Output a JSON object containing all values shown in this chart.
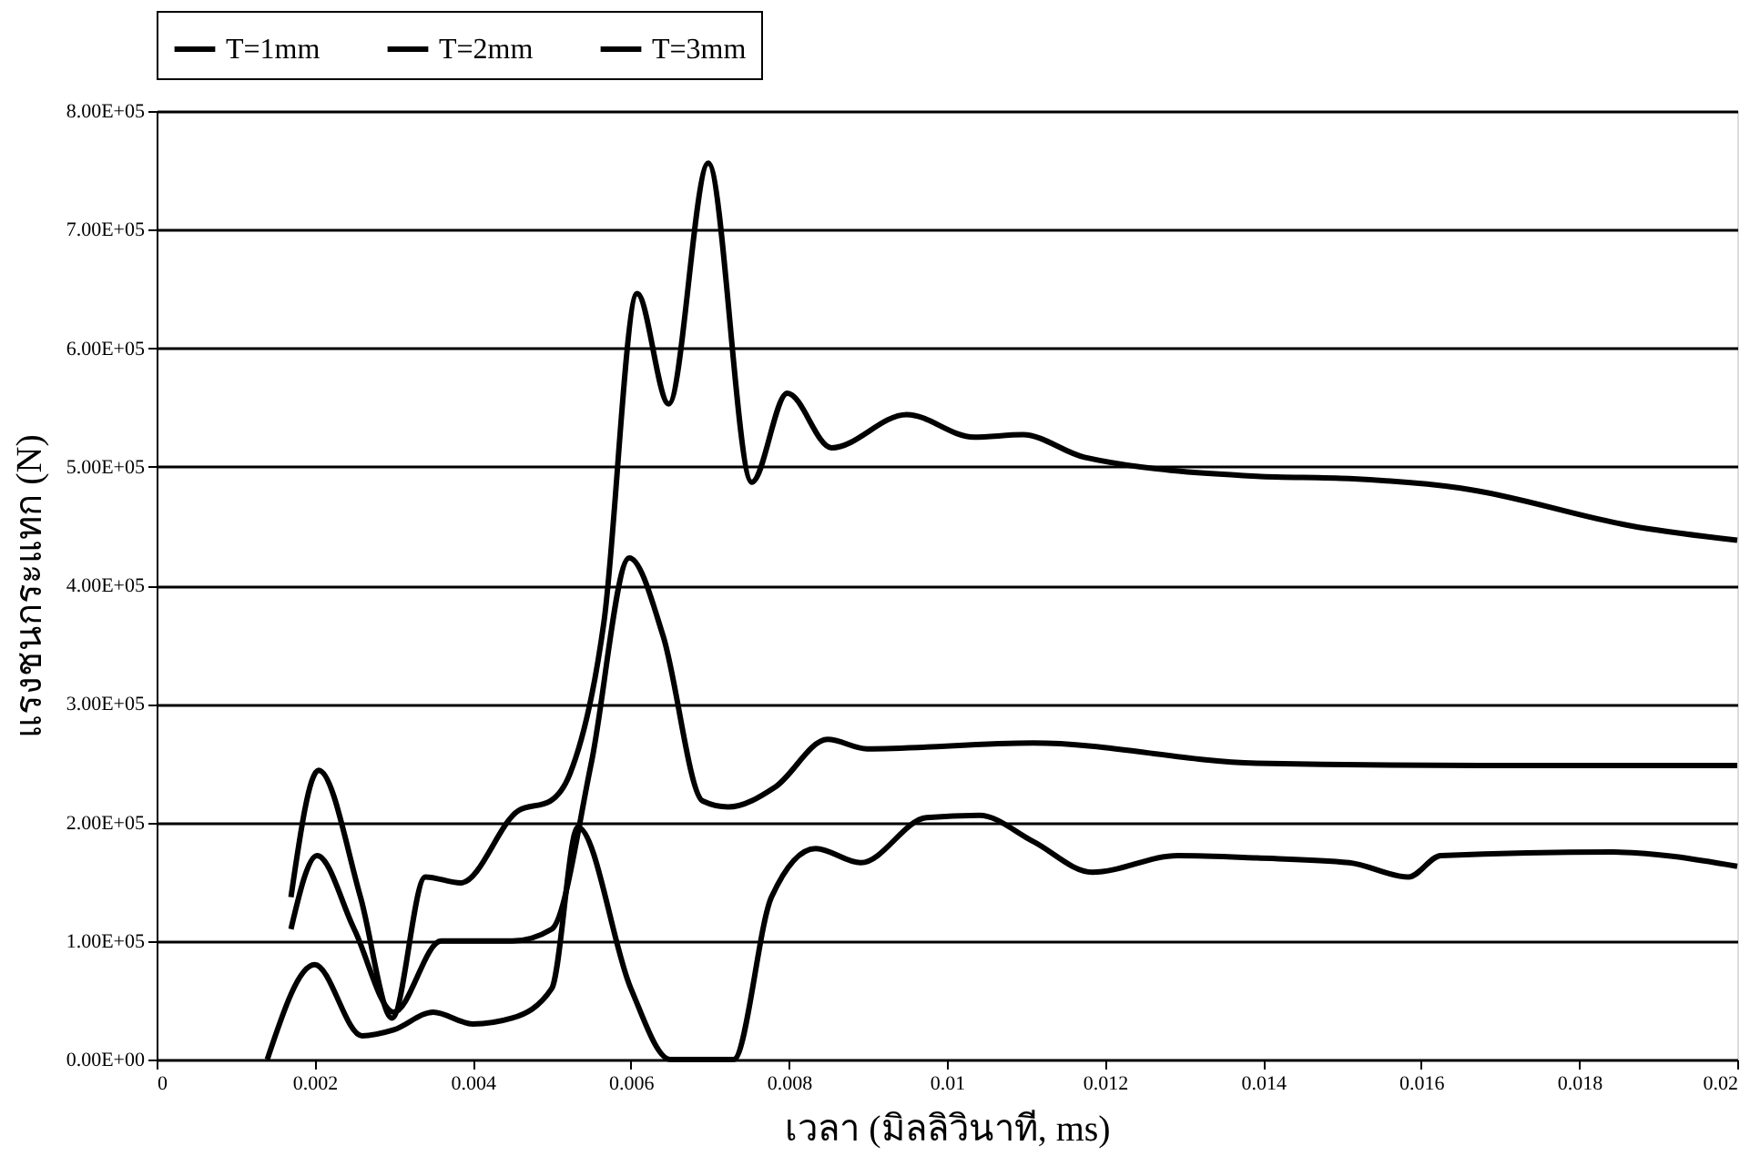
{
  "chart_data": {
    "type": "line",
    "xlabel": "เวลา (มิลลิวินาที, ms)",
    "ylabel": "แรงชนกระแทก (N)",
    "xlim": [
      0,
      0.02
    ],
    "xticks": [
      0,
      0.002,
      0.004,
      0.006,
      0.008,
      0.01,
      0.012,
      0.014,
      0.016,
      0.018,
      0.02
    ],
    "ylim": [
      0,
      800000
    ],
    "yticks": [
      {
        "value": 0,
        "label": "0.00E+00"
      },
      {
        "value": 100000,
        "label": "1.00E+05"
      },
      {
        "value": 200000,
        "label": "2.00E+05"
      },
      {
        "value": 300000,
        "label": "3.00E+05"
      },
      {
        "value": 400000,
        "label": "4.00E+05"
      },
      {
        "value": 500000,
        "label": "5.00E+05"
      },
      {
        "value": 600000,
        "label": "6.00E+05"
      },
      {
        "value": 700000,
        "label": "7.00E+05"
      },
      {
        "value": 800000,
        "label": "8.00E+05"
      }
    ],
    "grid": "y",
    "legend": "top",
    "marker": "none",
    "line_style": "solid",
    "series": [
      {
        "name": "T=1mm",
        "color": "#000000",
        "x": [
          0.0017,
          0.00205,
          0.00258,
          0.00298,
          0.0034,
          0.00385,
          0.00458,
          0.00498,
          0.00523,
          0.00566,
          0.00608,
          0.00648,
          0.00698,
          0.00753,
          0.00798,
          0.00854,
          0.00949,
          0.01034,
          0.01096,
          0.01174,
          0.01392,
          0.01509,
          0.0165,
          0.01875,
          0.02
        ],
        "values": [
          137000,
          244000,
          137000,
          35000,
          154000,
          149000,
          210000,
          218000,
          241000,
          369000,
          646000,
          553000,
          756000,
          487000,
          562000,
          516000,
          544000,
          525000,
          527000,
          508000,
          492000,
          490000,
          482000,
          449000,
          438000
        ]
      },
      {
        "name": "T=2mm",
        "color": "#000000",
        "x": [
          0.0017,
          0.00203,
          0.0025,
          0.003,
          0.0036,
          0.0045,
          0.005,
          0.0055,
          0.00598,
          0.00641,
          0.00691,
          0.00723,
          0.00783,
          0.00849,
          0.00899,
          0.01109,
          0.01392,
          0.01675,
          0.02
        ],
        "values": [
          110000,
          172000,
          110000,
          40000,
          100000,
          100000,
          110000,
          250000,
          423000,
          357000,
          218000,
          213000,
          230000,
          270000,
          262000,
          267000,
          250000,
          248000,
          248000
        ]
      },
      {
        "name": "T=3mm",
        "color": "#000000",
        "x": [
          0.0014,
          0.002,
          0.0026,
          0.003,
          0.0035,
          0.004,
          0.0045,
          0.005,
          0.00533,
          0.006,
          0.0065,
          0.0073,
          0.00778,
          0.00834,
          0.00891,
          0.00974,
          0.01041,
          0.01109,
          0.01184,
          0.01292,
          0.01392,
          0.01509,
          0.01584,
          0.01625,
          0.01842,
          0.02
        ],
        "values": [
          0,
          80000,
          20000,
          25000,
          40000,
          30000,
          35000,
          60000,
          196000,
          60000,
          0,
          0,
          137000,
          178000,
          166000,
          204000,
          206000,
          184000,
          158000,
          172000,
          170000,
          166000,
          154000,
          172000,
          175000,
          163000
        ]
      }
    ]
  }
}
